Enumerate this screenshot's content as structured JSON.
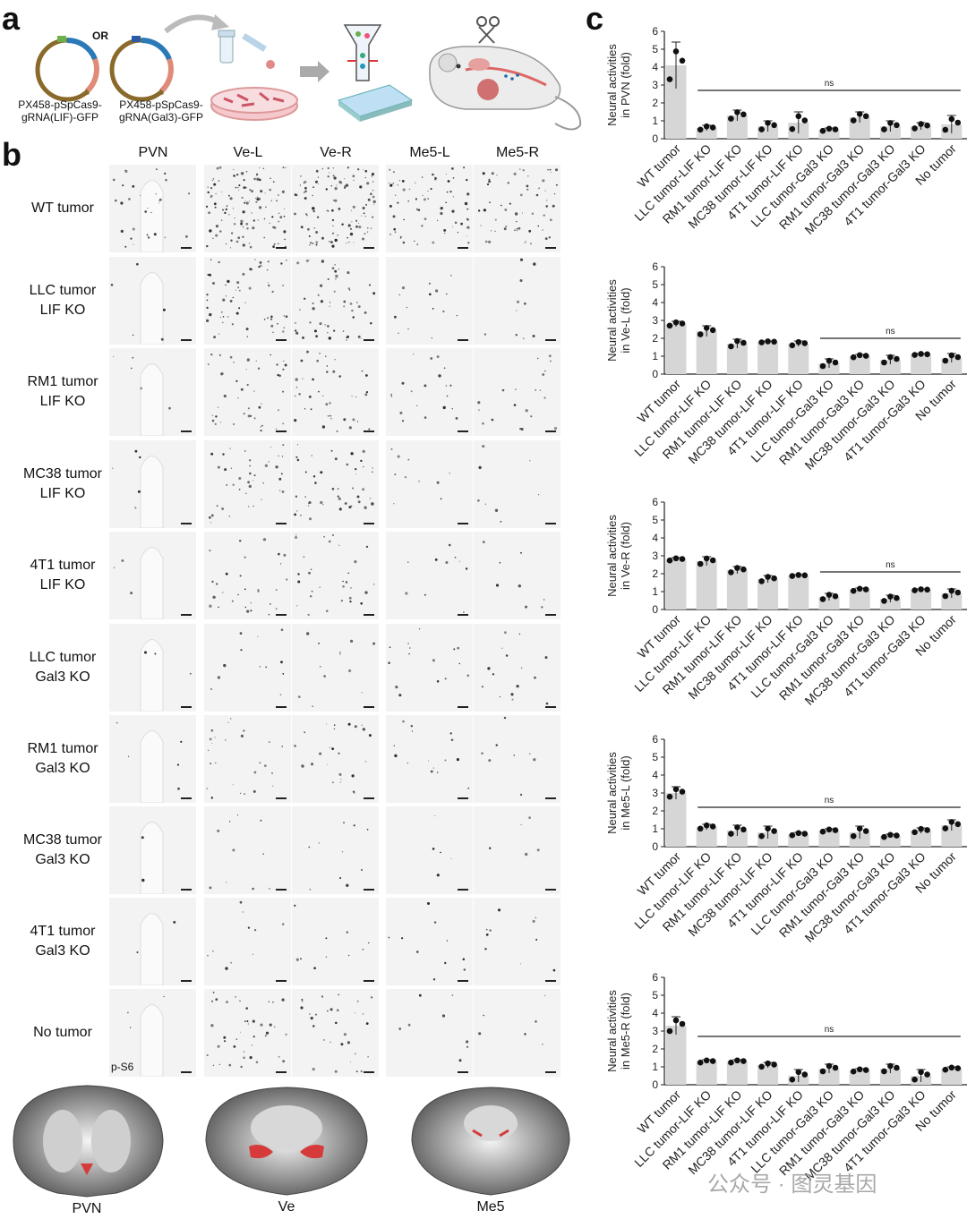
{
  "panel_a": {
    "letter": "a",
    "plasmid_labels": [
      "PX458-pSpCas9-\ngRNA(LIF)-GFP",
      "PX458-pSpCas9-\ngRNA(Gal3)-GFP"
    ],
    "or_label": "OR"
  },
  "panel_b": {
    "letter": "b",
    "columns": [
      "PVN",
      "Ve-L",
      "Ve-R",
      "Me5-L",
      "Me5-R"
    ],
    "rows": [
      {
        "l1": "WT tumor",
        "l2": ""
      },
      {
        "l1": "LLC tumor",
        "l2": "LIF KO"
      },
      {
        "l1": "RM1 tumor",
        "l2": "LIF KO"
      },
      {
        "l1": "MC38 tumor",
        "l2": "LIF KO"
      },
      {
        "l1": "4T1 tumor",
        "l2": "LIF KO"
      },
      {
        "l1": "LLC tumor",
        "l2": "Gal3 KO"
      },
      {
        "l1": "RM1 tumor",
        "l2": "Gal3 KO"
      },
      {
        "l1": "MC38 tumor",
        "l2": "Gal3 KO"
      },
      {
        "l1": "4T1 tumor",
        "l2": "Gal3 KO"
      },
      {
        "l1": "No tumor",
        "l2": ""
      }
    ],
    "stain_label": "p-S6",
    "brain_labels": [
      "PVN",
      "Ve",
      "Me5"
    ]
  },
  "panel_c": {
    "letter": "c"
  },
  "watermark": "公众号 · 图灵基因",
  "chart_data": [
    {
      "type": "bar",
      "ylabel": "Neural activities\nin PVN (fold)",
      "ylim": [
        0,
        6
      ],
      "yticks": [
        "0",
        "1",
        "2",
        "3",
        "4",
        "5",
        "6"
      ],
      "categories": [
        "WT tumor",
        "LLC tumor-LIF KO",
        "RM1 tumor-LIF KO",
        "MC38 tumor-LIF KO",
        "4T1 tumor-LIF KO",
        "LLC tumor-Gal3 KO",
        "RM1 tumor-Gal3 KO",
        "MC38 tumor-Gal3 KO",
        "4T1 tumor-Gal3 KO",
        "No tumor"
      ],
      "values": [
        4.1,
        0.6,
        1.3,
        0.7,
        0.9,
        0.5,
        1.2,
        0.7,
        0.7,
        0.8
      ],
      "errors": [
        1.3,
        0.15,
        0.3,
        0.3,
        0.6,
        0.1,
        0.3,
        0.3,
        0.2,
        0.5
      ],
      "annotation": {
        "text": "ns",
        "from": 1,
        "to": 9,
        "y": 2.7
      }
    },
    {
      "type": "bar",
      "ylabel": "Neural activities\nin Ve-L (fold)",
      "ylim": [
        0,
        6
      ],
      "yticks": [
        "0",
        "1",
        "2",
        "3",
        "4",
        "5",
        "6"
      ],
      "categories": [
        "WT tumor",
        "LLC tumor-LIF KO",
        "RM1 tumor-LIF KO",
        "MC38 tumor-LIF KO",
        "4T1 tumor-LIF KO",
        "LLC tumor-Gal3 KO",
        "RM1 tumor-Gal3 KO",
        "MC38 tumor-Gal3 KO",
        "4T1 tumor-Gal3 KO",
        "No tumor"
      ],
      "values": [
        2.8,
        2.4,
        1.7,
        1.8,
        1.7,
        0.6,
        1.0,
        0.8,
        1.1,
        0.9
      ],
      "errors": [
        0.15,
        0.3,
        0.25,
        0.05,
        0.15,
        0.25,
        0.1,
        0.25,
        0.05,
        0.25
      ],
      "annotation": {
        "text": "ns",
        "from": 5,
        "to": 9,
        "y": 2.0
      }
    },
    {
      "type": "bar",
      "ylabel": "Neural activities\nin Ve-R (fold)",
      "ylim": [
        0,
        6
      ],
      "yticks": [
        "0",
        "1",
        "2",
        "3",
        "4",
        "5",
        "6"
      ],
      "categories": [
        "WT tumor",
        "LLC tumor-LIF KO",
        "RM1 tumor-LIF KO",
        "MC38 tumor-LIF KO",
        "4T1 tumor-LIF KO",
        "LLC tumor-Gal3 KO",
        "RM1 tumor-Gal3 KO",
        "MC38 tumor-Gal3 KO",
        "4T1 tumor-Gal3 KO",
        "No tumor"
      ],
      "values": [
        2.8,
        2.7,
        2.2,
        1.7,
        1.9,
        0.7,
        1.1,
        0.6,
        1.1,
        0.9
      ],
      "errors": [
        0.1,
        0.25,
        0.2,
        0.2,
        0.05,
        0.2,
        0.1,
        0.2,
        0.05,
        0.25
      ],
      "annotation": {
        "text": "ns",
        "from": 5,
        "to": 9,
        "y": 2.1
      }
    },
    {
      "type": "bar",
      "ylabel": "Neural activities\nin Me5-L (fold)",
      "ylim": [
        0,
        6
      ],
      "yticks": [
        "0",
        "1",
        "2",
        "3",
        "4",
        "5",
        "6"
      ],
      "categories": [
        "WT tumor",
        "LLC tumor-LIF KO",
        "RM1 tumor-LIF KO",
        "MC38 tumor-LIF KO",
        "4T1 tumor-LIF KO",
        "LLC tumor-Gal3 KO",
        "RM1 tumor-Gal3 KO",
        "MC38 tumor-Gal3 KO",
        "4T1 tumor-Gal3 KO",
        "No tumor"
      ],
      "values": [
        3.0,
        1.1,
        0.9,
        0.8,
        0.7,
        0.9,
        0.8,
        0.6,
        0.9,
        1.2
      ],
      "errors": [
        0.35,
        0.15,
        0.3,
        0.35,
        0.1,
        0.1,
        0.35,
        0.1,
        0.15,
        0.3
      ],
      "annotation": {
        "text": "ns",
        "from": 1,
        "to": 9,
        "y": 2.2
      }
    },
    {
      "type": "bar",
      "ylabel": "Neural activities\nin Me5-R (fold)",
      "ylim": [
        0,
        6
      ],
      "yticks": [
        "0",
        "1",
        "2",
        "3",
        "4",
        "5",
        "6"
      ],
      "categories": [
        "WT tumor",
        "LLC tumor-LIF KO",
        "RM1 tumor-LIF KO",
        "MC38 tumor-LIF KO",
        "4T1 tumor-LIF KO",
        "LLC tumor-Gal3 KO",
        "RM1 tumor-Gal3 KO",
        "MC38 tumor-Gal3 KO",
        "4T1 tumor-Gal3 KO",
        "No tumor"
      ],
      "values": [
        3.3,
        1.3,
        1.3,
        1.1,
        0.5,
        0.9,
        0.8,
        0.9,
        0.5,
        0.9
      ],
      "errors": [
        0.5,
        0.1,
        0.1,
        0.15,
        0.35,
        0.25,
        0.1,
        0.25,
        0.35,
        0.1
      ],
      "annotation": {
        "text": "ns",
        "from": 1,
        "to": 9,
        "y": 2.7
      }
    }
  ]
}
